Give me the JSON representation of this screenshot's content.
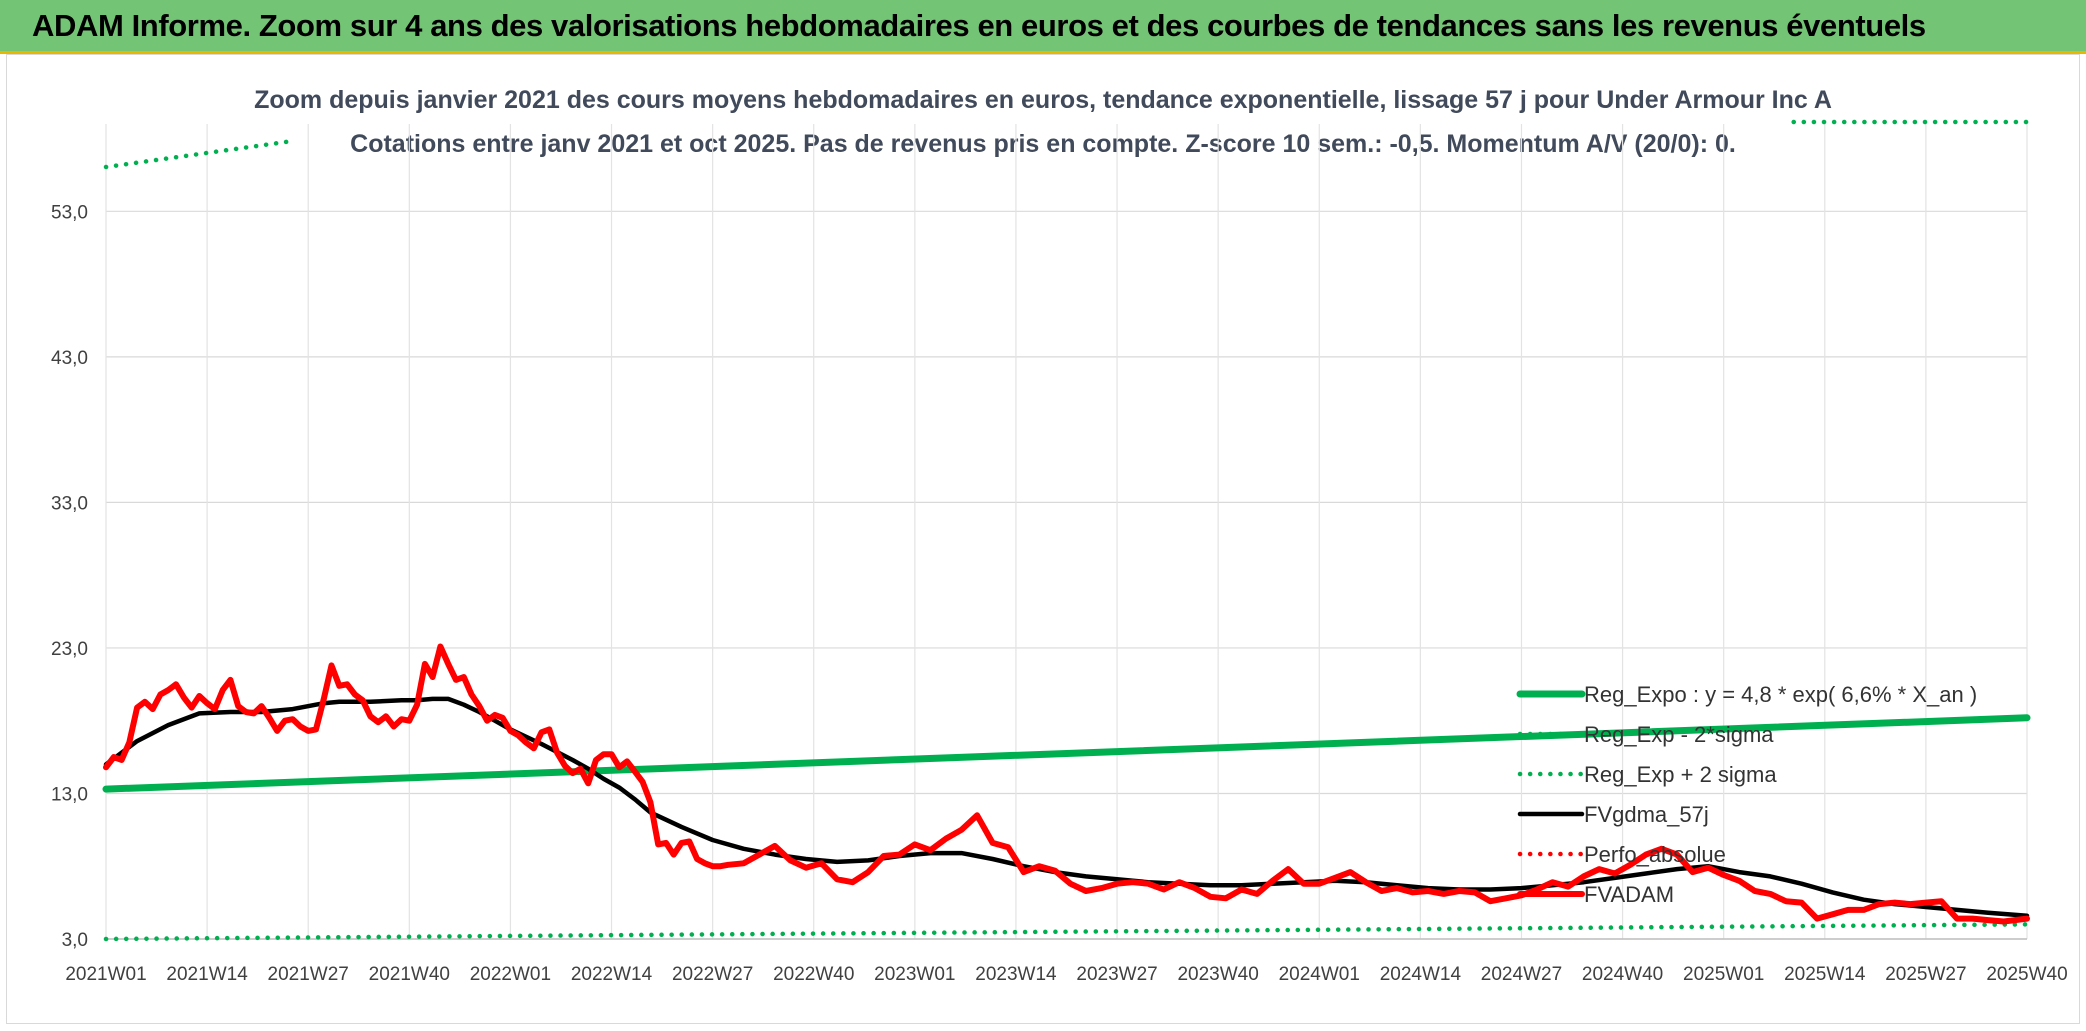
{
  "banner": {
    "title": "ADAM Informe. Zoom sur 4 ans des valorisations hebdomadaires en euros et des courbes de tendances sans les revenus éventuels"
  },
  "chart_data": {
    "type": "line",
    "title": "Zoom depuis janvier 2021 des cours moyens hebdomadaires en euros, tendance exponentielle, lissage 57 j pour Under Armour Inc A",
    "subtitle": "Cotations entre janv 2021 et oct 2025. Pas de revenus pris en compte. Z-score 10 sem.: -0,5. Momentum A/V (20/0): 0.",
    "xlabel": "",
    "ylabel": "",
    "ylim": [
      3.0,
      59.0
    ],
    "yticks": [
      "3,0",
      "13,0",
      "23,0",
      "33,0",
      "43,0",
      "53,0"
    ],
    "ytick_values": [
      3,
      13,
      23,
      33,
      43,
      53
    ],
    "x_categories": [
      "2021W01",
      "2021W14",
      "2021W27",
      "2021W40",
      "2022W01",
      "2022W14",
      "2022W27",
      "2022W40",
      "2023W01",
      "2023W14",
      "2023W27",
      "2023W40",
      "2024W01",
      "2024W14",
      "2024W27",
      "2024W40",
      "2025W01",
      "2025W14",
      "2025W27",
      "2025W40"
    ],
    "x_tick_weeks": [
      0,
      13,
      26,
      39,
      52,
      65,
      78,
      91,
      104,
      117,
      130,
      143,
      156,
      169,
      182,
      195,
      208,
      221,
      234,
      247
    ],
    "grid": true,
    "legend_position": "right",
    "series": [
      {
        "name": "Reg_Expo : y = 4,8 * exp( 6,6% *  X_an )",
        "style": "solid-thick",
        "color": "#00b050",
        "x": [
          0,
          247
        ],
        "y": [
          13.3,
          18.2
        ]
      },
      {
        "name": "Reg_Exp - 2*sigma",
        "style": "dotted",
        "color": "#00b050",
        "x": [
          0,
          247
        ],
        "y": [
          3.0,
          4.0
        ]
      },
      {
        "name": "Reg_Exp + 2 sigma",
        "style": "dotted",
        "color": "#00b050",
        "x": [
          0,
          24,
          217,
          247
        ],
        "y": [
          57.0,
          58.8,
          60.0,
          60.0
        ]
      },
      {
        "name": "FVgdma_57j",
        "style": "solid",
        "color": "#000000",
        "x": [
          0,
          4,
          8,
          12,
          16,
          20,
          24,
          28,
          30,
          34,
          38,
          40,
          42,
          44,
          46,
          48,
          50,
          52,
          56,
          60,
          62,
          64,
          66,
          68,
          70,
          74,
          78,
          82,
          86,
          90,
          94,
          98,
          102,
          106,
          110,
          114,
          118,
          122,
          126,
          130,
          134,
          138,
          142,
          146,
          150,
          154,
          158,
          162,
          166,
          170,
          174,
          178,
          182,
          186,
          190,
          194,
          198,
          202,
          206,
          210,
          214,
          218,
          222,
          226,
          230,
          234,
          238,
          242,
          247
        ],
        "y": [
          15.0,
          16.6,
          17.7,
          18.5,
          18.6,
          18.6,
          18.8,
          19.2,
          19.3,
          19.3,
          19.4,
          19.4,
          19.5,
          19.5,
          19.1,
          18.6,
          18.0,
          17.4,
          16.4,
          15.3,
          14.7,
          14.0,
          13.4,
          12.6,
          11.7,
          10.7,
          9.8,
          9.2,
          8.8,
          8.5,
          8.3,
          8.4,
          8.7,
          8.9,
          8.9,
          8.5,
          8.0,
          7.6,
          7.3,
          7.1,
          6.9,
          6.8,
          6.7,
          6.7,
          6.8,
          6.9,
          7.0,
          6.9,
          6.7,
          6.5,
          6.4,
          6.4,
          6.5,
          6.7,
          6.9,
          7.2,
          7.5,
          7.8,
          8.0,
          7.6,
          7.3,
          6.8,
          6.2,
          5.7,
          5.4,
          5.2,
          5.0,
          4.8,
          4.6
        ]
      },
      {
        "name": "Perfo_absolue",
        "style": "dotted",
        "color": "#ff0000",
        "x": [],
        "y": []
      },
      {
        "name": "FVADAM",
        "style": "solid-thick",
        "color": "#ff0000",
        "x": [
          0,
          1,
          2,
          3,
          4,
          5,
          6,
          7,
          8,
          9,
          10,
          11,
          12,
          13,
          14,
          15,
          16,
          17,
          18,
          19,
          20,
          21,
          22,
          23,
          24,
          25,
          26,
          27,
          28,
          29,
          30,
          31,
          32,
          33,
          34,
          35,
          36,
          37,
          38,
          39,
          40,
          41,
          42,
          43,
          44,
          45,
          46,
          47,
          48,
          49,
          50,
          51,
          52,
          53,
          54,
          55,
          56,
          57,
          58,
          59,
          60,
          61,
          62,
          63,
          64,
          65,
          66,
          67,
          68,
          69,
          70,
          71,
          72,
          73,
          74,
          75,
          76,
          77,
          78,
          79,
          80,
          82,
          84,
          86,
          88,
          90,
          92,
          94,
          96,
          98,
          100,
          102,
          104,
          106,
          108,
          110,
          112,
          114,
          116,
          118,
          120,
          122,
          124,
          126,
          128,
          130,
          132,
          134,
          136,
          138,
          140,
          142,
          144,
          146,
          148,
          150,
          152,
          154,
          156,
          158,
          160,
          162,
          164,
          166,
          168,
          170,
          172,
          174,
          176,
          178,
          180,
          182,
          184,
          186,
          188,
          190,
          192,
          194,
          196,
          198,
          200,
          202,
          204,
          206,
          208,
          210,
          212,
          214,
          216,
          218,
          220,
          222,
          224,
          226,
          228,
          230,
          232,
          234,
          236,
          238,
          240,
          242,
          244,
          247
        ],
        "y": [
          14.8,
          15.5,
          15.3,
          16.5,
          18.9,
          19.3,
          18.8,
          19.8,
          20.1,
          20.5,
          19.6,
          18.9,
          19.7,
          19.2,
          18.8,
          20.1,
          20.8,
          19.0,
          18.6,
          18.5,
          19.0,
          18.2,
          17.3,
          18.0,
          18.1,
          17.6,
          17.3,
          17.4,
          19.5,
          21.8,
          20.4,
          20.5,
          19.8,
          19.4,
          18.3,
          17.9,
          18.3,
          17.6,
          18.1,
          18.0,
          19.1,
          21.9,
          21.0,
          23.1,
          21.9,
          20.8,
          21.0,
          19.8,
          19.0,
          18.0,
          18.4,
          18.2,
          17.3,
          17.0,
          16.5,
          16.1,
          17.2,
          17.4,
          15.8,
          14.9,
          14.4,
          14.7,
          13.7,
          15.3,
          15.7,
          15.7,
          14.8,
          15.2,
          14.5,
          13.8,
          12.4,
          9.5,
          9.6,
          8.8,
          9.6,
          9.7,
          8.5,
          8.2,
          8.0,
          8.0,
          8.1,
          8.2,
          8.8,
          9.4,
          8.4,
          7.9,
          8.2,
          7.1,
          6.9,
          7.6,
          8.7,
          8.8,
          9.5,
          9.1,
          9.9,
          10.5,
          11.5,
          9.6,
          9.3,
          7.6,
          8.0,
          7.7,
          6.8,
          6.3,
          6.5,
          6.8,
          6.9,
          6.8,
          6.4,
          6.9,
          6.5,
          5.9,
          5.8,
          6.4,
          6.1,
          7.0,
          7.8,
          6.8,
          6.8,
          7.2,
          7.6,
          6.9,
          6.3,
          6.5,
          6.2,
          6.3,
          6.1,
          6.3,
          6.2,
          5.6,
          5.8,
          6.0,
          6.4,
          6.9,
          6.6,
          7.3,
          7.8,
          7.5,
          8.1,
          8.8,
          9.2,
          8.8,
          7.6,
          7.9,
          7.4,
          7.0,
          6.3,
          6.1,
          5.6,
          5.5,
          4.4,
          4.7,
          5.0,
          5.0,
          5.4,
          5.5,
          5.4,
          5.5,
          5.6,
          4.4,
          4.4,
          4.3,
          4.2,
          4.4
        ]
      }
    ]
  }
}
